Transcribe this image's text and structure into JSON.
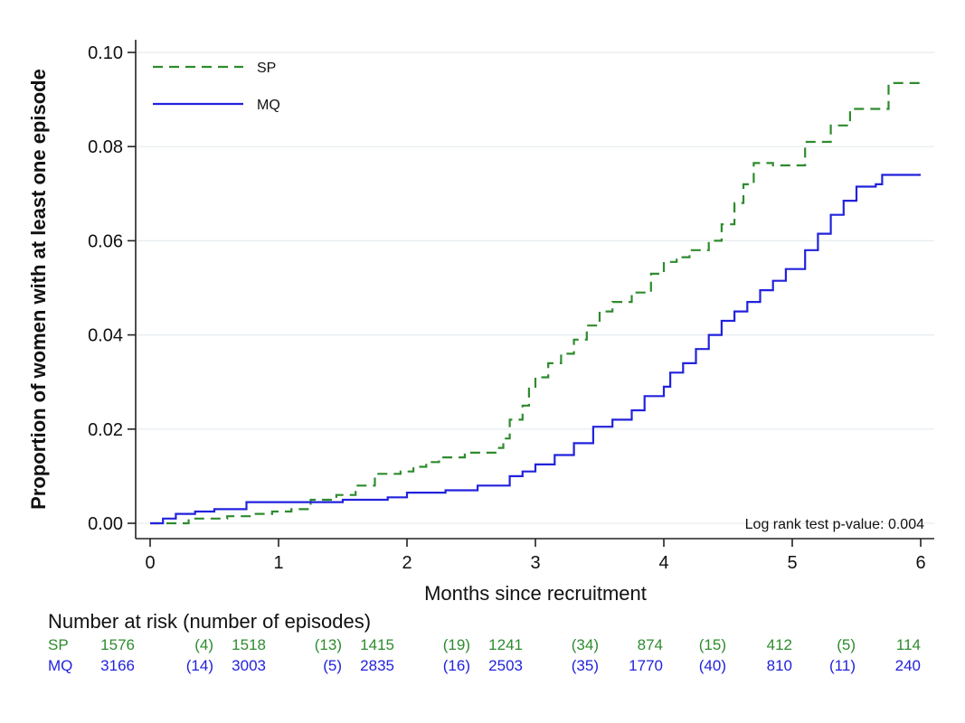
{
  "chart_data": {
    "type": "line",
    "title": "",
    "xlabel": "Months since recruitment",
    "ylabel": "Proportion of women with at least one episode",
    "xlim": [
      0,
      6
    ],
    "ylim": [
      0,
      0.1
    ],
    "xticks": [
      "0",
      "1",
      "2",
      "3",
      "4",
      "5",
      "6"
    ],
    "yticks": [
      "0.00",
      "0.02",
      "0.04",
      "0.06",
      "0.08",
      "0.10"
    ],
    "grid": "horizontal",
    "legend_position": "top-left",
    "annotation": "Log rank test p-value: 0.004",
    "series": [
      {
        "name": "SP",
        "color": "#2e8b2e",
        "style": "dashed",
        "step": true,
        "points": [
          [
            0,
            0
          ],
          [
            0.3,
            0.001
          ],
          [
            0.6,
            0.0015
          ],
          [
            0.8,
            0.002
          ],
          [
            0.95,
            0.0025
          ],
          [
            1.1,
            0.003
          ],
          [
            1.25,
            0.005
          ],
          [
            1.45,
            0.006
          ],
          [
            1.6,
            0.008
          ],
          [
            1.75,
            0.0105
          ],
          [
            1.95,
            0.011
          ],
          [
            2.05,
            0.012
          ],
          [
            2.15,
            0.013
          ],
          [
            2.25,
            0.014
          ],
          [
            2.45,
            0.015
          ],
          [
            2.7,
            0.016
          ],
          [
            2.75,
            0.018
          ],
          [
            2.8,
            0.022
          ],
          [
            2.9,
            0.025
          ],
          [
            2.95,
            0.029
          ],
          [
            3.0,
            0.031
          ],
          [
            3.1,
            0.034
          ],
          [
            3.2,
            0.036
          ],
          [
            3.3,
            0.039
          ],
          [
            3.4,
            0.042
          ],
          [
            3.5,
            0.045
          ],
          [
            3.6,
            0.047
          ],
          [
            3.75,
            0.049
          ],
          [
            3.9,
            0.053
          ],
          [
            4.0,
            0.0555
          ],
          [
            4.1,
            0.0565
          ],
          [
            4.2,
            0.058
          ],
          [
            4.35,
            0.06
          ],
          [
            4.45,
            0.0635
          ],
          [
            4.55,
            0.068
          ],
          [
            4.62,
            0.072
          ],
          [
            4.7,
            0.0765
          ],
          [
            4.85,
            0.076
          ],
          [
            5.1,
            0.081
          ],
          [
            5.3,
            0.0845
          ],
          [
            5.45,
            0.088
          ],
          [
            5.75,
            0.0935
          ],
          [
            6.0,
            0.0935
          ]
        ]
      },
      {
        "name": "MQ",
        "color": "#2222dd",
        "style": "solid",
        "step": true,
        "points": [
          [
            0,
            0
          ],
          [
            0.1,
            0.001
          ],
          [
            0.2,
            0.002
          ],
          [
            0.35,
            0.0025
          ],
          [
            0.5,
            0.003
          ],
          [
            0.75,
            0.0045
          ],
          [
            1.0,
            0.0045
          ],
          [
            1.5,
            0.005
          ],
          [
            1.85,
            0.0055
          ],
          [
            2.0,
            0.0065
          ],
          [
            2.3,
            0.007
          ],
          [
            2.55,
            0.008
          ],
          [
            2.8,
            0.01
          ],
          [
            2.9,
            0.011
          ],
          [
            3.0,
            0.0125
          ],
          [
            3.15,
            0.0145
          ],
          [
            3.3,
            0.017
          ],
          [
            3.45,
            0.0205
          ],
          [
            3.6,
            0.022
          ],
          [
            3.75,
            0.024
          ],
          [
            3.85,
            0.027
          ],
          [
            4.0,
            0.029
          ],
          [
            4.05,
            0.032
          ],
          [
            4.15,
            0.034
          ],
          [
            4.25,
            0.037
          ],
          [
            4.35,
            0.04
          ],
          [
            4.45,
            0.043
          ],
          [
            4.55,
            0.045
          ],
          [
            4.65,
            0.047
          ],
          [
            4.75,
            0.0495
          ],
          [
            4.85,
            0.0515
          ],
          [
            4.95,
            0.054
          ],
          [
            5.1,
            0.058
          ],
          [
            5.2,
            0.0615
          ],
          [
            5.3,
            0.0655
          ],
          [
            5.4,
            0.0685
          ],
          [
            5.5,
            0.0715
          ],
          [
            5.65,
            0.072
          ],
          [
            5.7,
            0.074
          ],
          [
            6.0,
            0.074
          ]
        ]
      }
    ]
  },
  "risk_table": {
    "title": "Number at risk (number of episodes)",
    "rows": [
      {
        "label": "SP",
        "values": [
          "1576",
          "(4)",
          "1518",
          "(13)",
          "1415",
          "(19)",
          "1241",
          "(34)",
          "874",
          "(15)",
          "412",
          "(5)",
          "114"
        ]
      },
      {
        "label": "MQ",
        "values": [
          "3166",
          "(14)",
          "3003",
          "(5)",
          "2835",
          "(16)",
          "2503",
          "(35)",
          "1770",
          "(40)",
          "810",
          "(11)",
          "240"
        ]
      }
    ]
  }
}
